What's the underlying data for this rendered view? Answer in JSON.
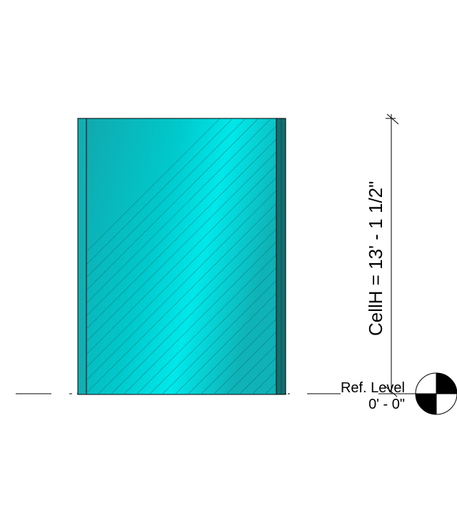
{
  "dimension": {
    "label": "CellH = 13' - 1 1/2\""
  },
  "level": {
    "name": "Ref. Level",
    "elevation": "0' - 0\""
  },
  "colors": {
    "panel_base": "#14b8bd",
    "panel_highlight": "#00e5e5",
    "edge_strip": "#116f70",
    "outline": "#000000",
    "hatch": "#0b6b70"
  }
}
